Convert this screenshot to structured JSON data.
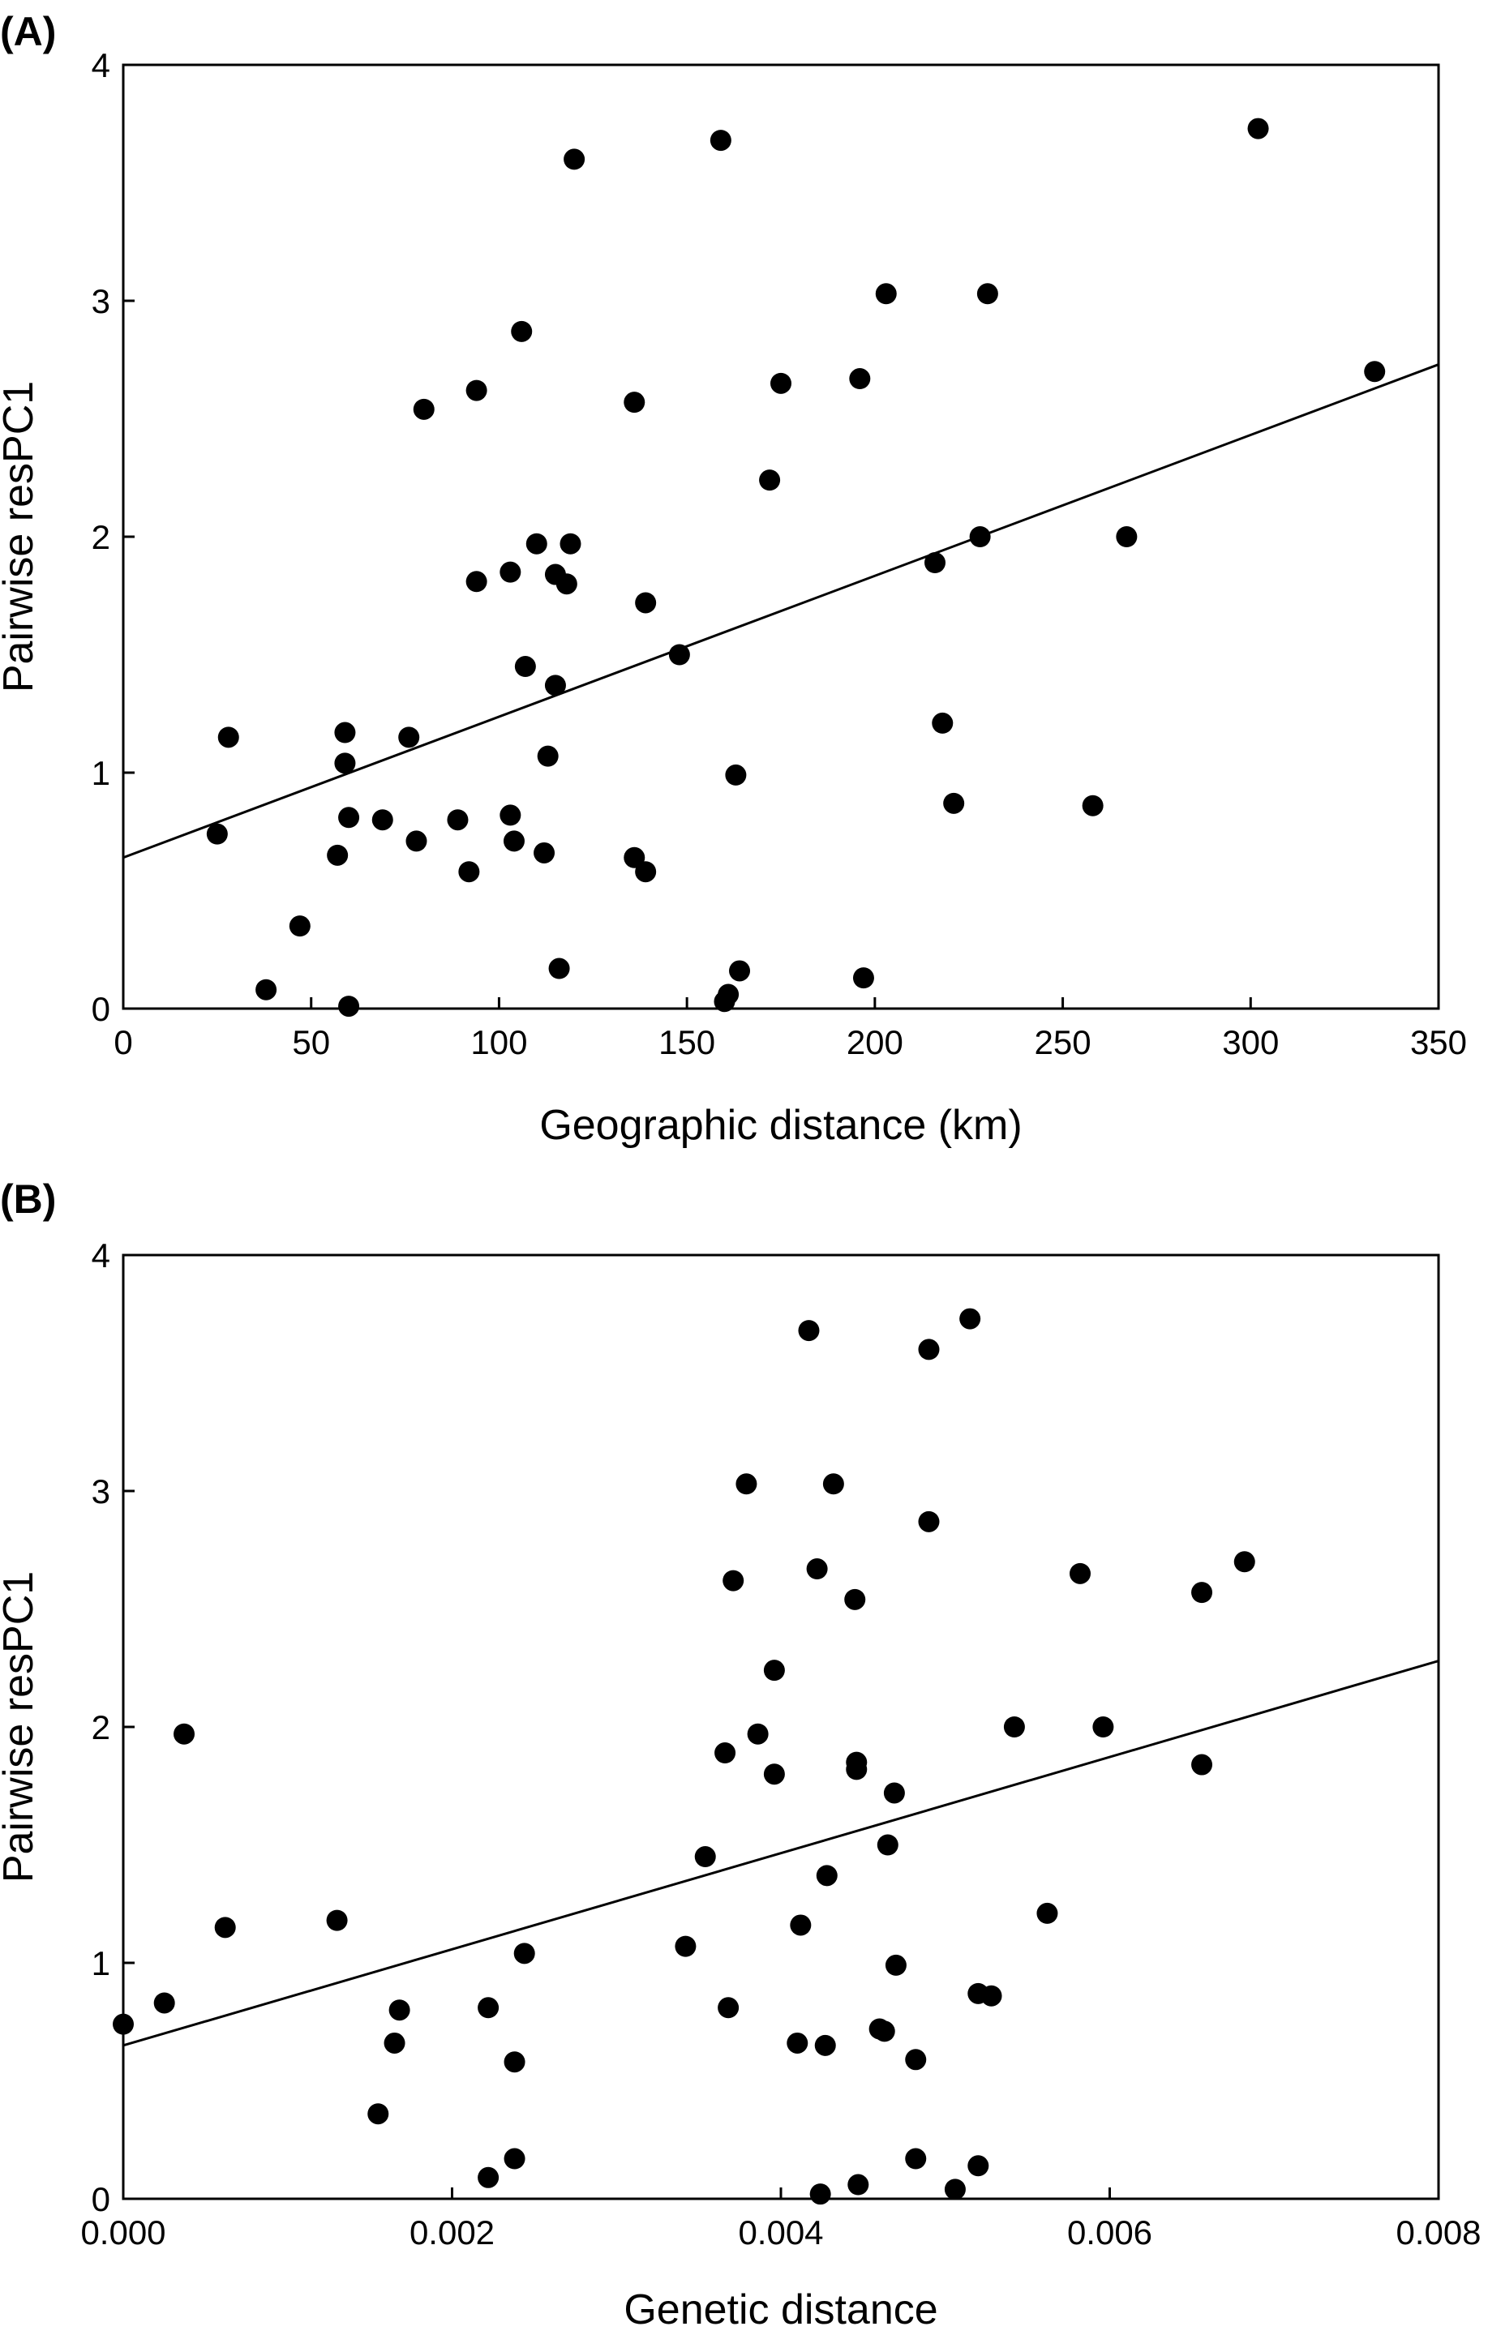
{
  "chart_data": [
    {
      "type": "scatter",
      "panel_label": "(A)",
      "xlabel": "Geographic distance (km)",
      "ylabel": "Pairwise resPC1",
      "xlim": [
        0,
        350
      ],
      "ylim": [
        0,
        4
      ],
      "x_ticks": [
        0,
        50,
        100,
        150,
        200,
        250,
        300,
        350
      ],
      "y_ticks": [
        0,
        1,
        2,
        3,
        4
      ],
      "x_tick_labels": [
        "0",
        "50",
        "100",
        "150",
        "200",
        "250",
        "300",
        "350"
      ],
      "y_tick_labels": [
        "0",
        "1",
        "2",
        "3",
        "4"
      ],
      "grid": false,
      "points": [
        {
          "x": 25,
          "y": 0.74
        },
        {
          "x": 28,
          "y": 1.15
        },
        {
          "x": 38,
          "y": 0.08
        },
        {
          "x": 47,
          "y": 0.35
        },
        {
          "x": 57,
          "y": 0.65
        },
        {
          "x": 59,
          "y": 1.17
        },
        {
          "x": 59,
          "y": 1.04
        },
        {
          "x": 60,
          "y": 0.81
        },
        {
          "x": 60,
          "y": 0.01
        },
        {
          "x": 69,
          "y": 0.8
        },
        {
          "x": 76,
          "y": 1.15
        },
        {
          "x": 78,
          "y": 0.71
        },
        {
          "x": 80,
          "y": 2.54
        },
        {
          "x": 89,
          "y": 0.8
        },
        {
          "x": 92,
          "y": 0.58
        },
        {
          "x": 94,
          "y": 2.62
        },
        {
          "x": 94,
          "y": 1.81
        },
        {
          "x": 103,
          "y": 1.85
        },
        {
          "x": 103,
          "y": 0.82
        },
        {
          "x": 104,
          "y": 0.71
        },
        {
          "x": 106,
          "y": 2.87
        },
        {
          "x": 107,
          "y": 1.45
        },
        {
          "x": 110,
          "y": 1.97
        },
        {
          "x": 112,
          "y": 0.66
        },
        {
          "x": 113,
          "y": 1.07
        },
        {
          "x": 115,
          "y": 1.84
        },
        {
          "x": 115,
          "y": 1.37
        },
        {
          "x": 116,
          "y": 0.17
        },
        {
          "x": 118,
          "y": 1.8
        },
        {
          "x": 119,
          "y": 1.97
        },
        {
          "x": 120,
          "y": 3.6
        },
        {
          "x": 136,
          "y": 2.57
        },
        {
          "x": 136,
          "y": 0.64
        },
        {
          "x": 139,
          "y": 1.72
        },
        {
          "x": 139,
          "y": 0.58
        },
        {
          "x": 148,
          "y": 1.5
        },
        {
          "x": 159,
          "y": 3.68
        },
        {
          "x": 160,
          "y": 0.03
        },
        {
          "x": 161,
          "y": 0.06
        },
        {
          "x": 163,
          "y": 0.99
        },
        {
          "x": 164,
          "y": 0.16
        },
        {
          "x": 172,
          "y": 2.24
        },
        {
          "x": 175,
          "y": 2.65
        },
        {
          "x": 196,
          "y": 2.67
        },
        {
          "x": 197,
          "y": 0.13
        },
        {
          "x": 203,
          "y": 3.03
        },
        {
          "x": 216,
          "y": 1.89
        },
        {
          "x": 218,
          "y": 1.21
        },
        {
          "x": 221,
          "y": 0.87
        },
        {
          "x": 228,
          "y": 2.0
        },
        {
          "x": 230,
          "y": 3.03
        },
        {
          "x": 258,
          "y": 0.86
        },
        {
          "x": 267,
          "y": 2.0
        },
        {
          "x": 302,
          "y": 3.73
        },
        {
          "x": 333,
          "y": 2.7
        }
      ],
      "trendline": {
        "x": [
          0,
          350
        ],
        "y": [
          0.64,
          2.73
        ]
      }
    },
    {
      "type": "scatter",
      "panel_label": "(B)",
      "xlabel": "Genetic distance",
      "ylabel": "Pairwise resPC1",
      "xlim": [
        0,
        0.008
      ],
      "ylim": [
        0,
        4
      ],
      "x_ticks": [
        0,
        0.002,
        0.004,
        0.006,
        0.008
      ],
      "y_ticks": [
        0,
        1,
        2,
        3,
        4
      ],
      "x_tick_labels": [
        "0.000",
        "0.002",
        "0.004",
        "0.006",
        "0.008"
      ],
      "y_tick_labels": [
        "0",
        "1",
        "2",
        "3",
        "4"
      ],
      "grid": false,
      "points": [
        {
          "x": 0.0,
          "y": 0.74
        },
        {
          "x": 0.00025,
          "y": 0.83
        },
        {
          "x": 0.00037,
          "y": 1.97
        },
        {
          "x": 0.00062,
          "y": 1.15
        },
        {
          "x": 0.0013,
          "y": 1.18
        },
        {
          "x": 0.00155,
          "y": 0.36
        },
        {
          "x": 0.00165,
          "y": 0.66
        },
        {
          "x": 0.00168,
          "y": 0.8
        },
        {
          "x": 0.00222,
          "y": 0.09
        },
        {
          "x": 0.00222,
          "y": 0.81
        },
        {
          "x": 0.00238,
          "y": 0.58
        },
        {
          "x": 0.00238,
          "y": 0.17
        },
        {
          "x": 0.00244,
          "y": 1.04
        },
        {
          "x": 0.00342,
          "y": 1.07
        },
        {
          "x": 0.00354,
          "y": 1.45
        },
        {
          "x": 0.00366,
          "y": 1.89
        },
        {
          "x": 0.00368,
          "y": 0.81
        },
        {
          "x": 0.00371,
          "y": 2.62
        },
        {
          "x": 0.00379,
          "y": 3.03
        },
        {
          "x": 0.00386,
          "y": 1.97
        },
        {
          "x": 0.00396,
          "y": 2.24
        },
        {
          "x": 0.00396,
          "y": 1.8
        },
        {
          "x": 0.0041,
          "y": 0.66
        },
        {
          "x": 0.00412,
          "y": 1.16
        },
        {
          "x": 0.00417,
          "y": 3.68
        },
        {
          "x": 0.00422,
          "y": 2.67
        },
        {
          "x": 0.00424,
          "y": 0.02
        },
        {
          "x": 0.00427,
          "y": 0.65
        },
        {
          "x": 0.00428,
          "y": 1.37
        },
        {
          "x": 0.00432,
          "y": 3.03
        },
        {
          "x": 0.00445,
          "y": 2.54
        },
        {
          "x": 0.00446,
          "y": 1.85
        },
        {
          "x": 0.00446,
          "y": 1.82
        },
        {
          "x": 0.00447,
          "y": 0.06
        },
        {
          "x": 0.0046,
          "y": 0.72
        },
        {
          "x": 0.00463,
          "y": 0.71
        },
        {
          "x": 0.00465,
          "y": 1.5
        },
        {
          "x": 0.00469,
          "y": 1.72
        },
        {
          "x": 0.0047,
          "y": 0.99
        },
        {
          "x": 0.00482,
          "y": 0.59
        },
        {
          "x": 0.00482,
          "y": 0.17
        },
        {
          "x": 0.0049,
          "y": 3.6
        },
        {
          "x": 0.0049,
          "y": 2.87
        },
        {
          "x": 0.00506,
          "y": 0.04
        },
        {
          "x": 0.00515,
          "y": 3.73
        },
        {
          "x": 0.0052,
          "y": 0.87
        },
        {
          "x": 0.0052,
          "y": 0.14
        },
        {
          "x": 0.00528,
          "y": 0.86
        },
        {
          "x": 0.00542,
          "y": 2.0
        },
        {
          "x": 0.00562,
          "y": 1.21
        },
        {
          "x": 0.00582,
          "y": 2.65
        },
        {
          "x": 0.00596,
          "y": 2.0
        },
        {
          "x": 0.00656,
          "y": 2.57
        },
        {
          "x": 0.00656,
          "y": 1.84
        },
        {
          "x": 0.00682,
          "y": 2.7
        }
      ],
      "trendline": {
        "x": [
          0,
          0.008
        ],
        "y": [
          0.65,
          2.28
        ]
      }
    }
  ]
}
